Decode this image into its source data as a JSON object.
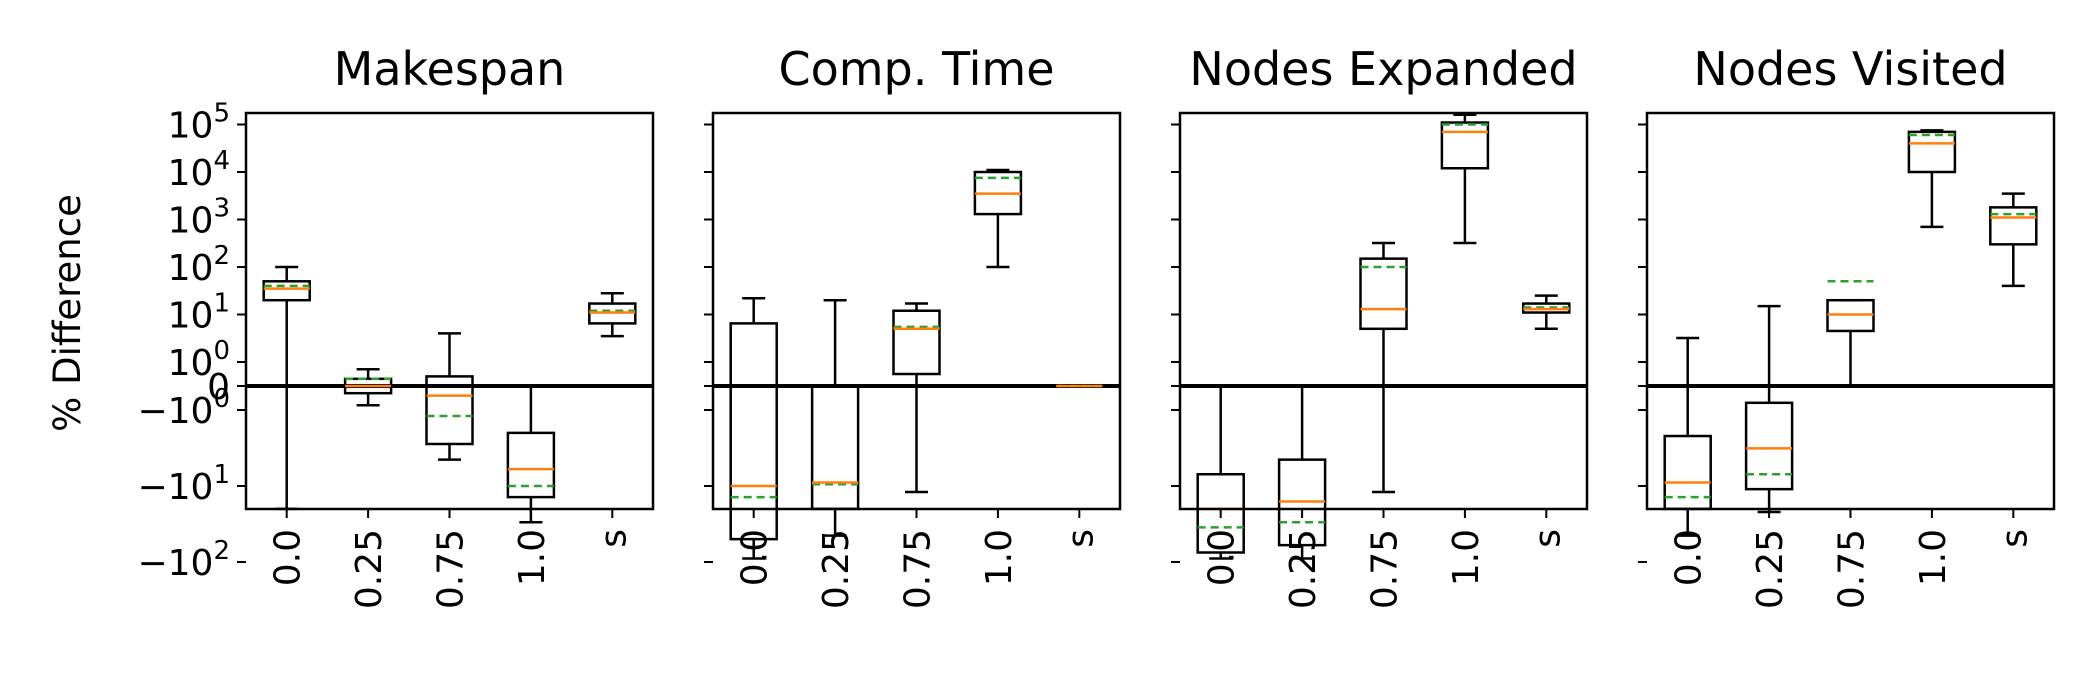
{
  "chart_data": {
    "type": "boxplot",
    "ylabel": "% Difference",
    "yscale": "symlog",
    "categories": [
      "0.0",
      "0.25",
      "0.75",
      "1.0",
      "s"
    ],
    "yticks": [
      {
        "value": 100000,
        "base": "10",
        "exp": "5"
      },
      {
        "value": 10000,
        "base": "10",
        "exp": "4"
      },
      {
        "value": 1000,
        "base": "10",
        "exp": "3"
      },
      {
        "value": 100,
        "base": "10",
        "exp": "2"
      },
      {
        "value": 10,
        "base": "10",
        "exp": "1"
      },
      {
        "value": 1,
        "base": "10",
        "exp": "0"
      },
      {
        "value": 0,
        "base": "0",
        "exp": ""
      },
      {
        "value": -1,
        "base": "−10",
        "exp": "0"
      },
      {
        "value": -10,
        "base": "−10",
        "exp": "1"
      },
      {
        "value": -100,
        "base": "−10",
        "exp": "2"
      }
    ],
    "colors": {
      "box": "#000000",
      "median": "#ff7f0e",
      "mean": "#2ca02c",
      "zero_line": "#000000"
    },
    "panels": [
      {
        "title": "Makespan",
        "boxes": [
          {
            "whisker_low": -20,
            "q1": 20,
            "median": 35,
            "mean": 40,
            "q3": 50,
            "whisker_high": 100
          },
          {
            "whisker_low": -0.8,
            "q1": -0.3,
            "median": 0,
            "mean": 0.3,
            "q3": 0.3,
            "whisker_high": 0.7
          },
          {
            "whisker_low": -4.5,
            "q1": -2.8,
            "median": -0.4,
            "mean": -1.2,
            "q3": 0.4,
            "whisker_high": 4
          },
          {
            "whisker_low": -30,
            "q1": -14,
            "median": -6,
            "mean": -10,
            "q3": -2,
            "whisker_high": 0
          },
          {
            "whisker_low": 3.5,
            "q1": 6.5,
            "median": 11,
            "mean": 12,
            "q3": 17,
            "whisker_high": 28
          }
        ]
      },
      {
        "title": "Comp. Time",
        "boxes": [
          {
            "whisker_low": -90,
            "q1": -50,
            "median": -10,
            "mean": -14,
            "q3": 6.5,
            "whisker_high": 22
          },
          {
            "whisker_low": -45,
            "q1": -20,
            "median": -9,
            "mean": -9.5,
            "q3": 0,
            "whisker_high": 20
          },
          {
            "whisker_low": -12,
            "q1": 0.5,
            "median": 5,
            "mean": 5.5,
            "q3": 12,
            "whisker_high": 17
          },
          {
            "whisker_low": 100,
            "q1": 1300,
            "median": 3500,
            "mean": 7500,
            "q3": 10000,
            "whisker_high": 11000
          },
          {
            "whisker_low": 0,
            "q1": 0,
            "median": 0,
            "mean": 0,
            "q3": 0,
            "whisker_high": 0
          }
        ]
      },
      {
        "title": "Nodes Expanded",
        "boxes": [
          {
            "whisker_low": -90,
            "q1": -75,
            "median": -20,
            "mean": -35,
            "q3": -7,
            "whisker_high": 0
          },
          {
            "whisker_low": -90,
            "q1": -60,
            "median": -16,
            "mean": -30,
            "q3": -4.5,
            "whisker_high": 0
          },
          {
            "whisker_low": -12,
            "q1": 5,
            "median": 13,
            "mean": 100,
            "q3": 150,
            "whisker_high": 320
          },
          {
            "whisker_low": 320,
            "q1": 12000,
            "median": 70000,
            "mean": 100000,
            "q3": 110000,
            "whisker_high": 160000
          },
          {
            "whisker_low": 5,
            "q1": 11,
            "median": 13,
            "mean": 14,
            "q3": 17,
            "whisker_high": 25
          }
        ]
      },
      {
        "title": "Nodes Visited",
        "boxes": [
          {
            "whisker_low": -45,
            "q1": -20,
            "median": -9,
            "mean": -14,
            "q3": -2.2,
            "whisker_high": 3.2
          },
          {
            "whisker_low": -22,
            "q1": -11,
            "median": -3.2,
            "mean": -7,
            "q3": -0.7,
            "whisker_high": 15
          },
          {
            "whisker_low": 0,
            "q1": 4.5,
            "median": 10,
            "mean": 50,
            "q3": 20,
            "whisker_high": 20
          },
          {
            "whisker_low": 700,
            "q1": 10000,
            "median": 40000,
            "mean": 60000,
            "q3": 70000,
            "whisker_high": 75000
          },
          {
            "whisker_low": 40,
            "q1": 300,
            "median": 1100,
            "mean": 1300,
            "q3": 1800,
            "whisker_high": 3500
          }
        ]
      }
    ]
  }
}
